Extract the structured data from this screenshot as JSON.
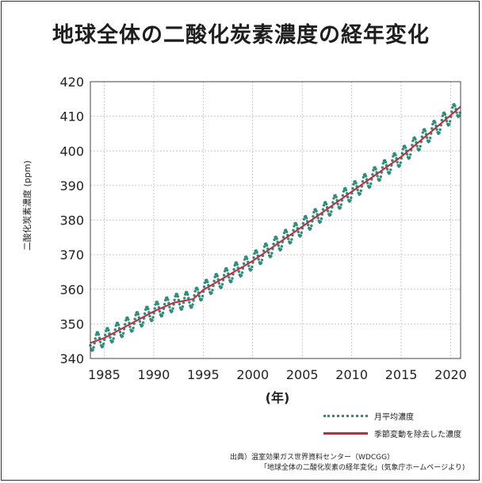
{
  "chart_data": {
    "type": "line",
    "title": "地球全体の二酸化炭素濃度の経年変化",
    "xlabel": "(年)",
    "ylabel": "二酸化炭素濃度 (ppm)",
    "xlim": [
      1983.6,
      2021.0
    ],
    "ylim": [
      340,
      420
    ],
    "x_ticks": [
      1985,
      1990,
      1995,
      2000,
      2005,
      2010,
      2015,
      2020
    ],
    "x_tick_labels": [
      "1985",
      "1990",
      "1995",
      "2000",
      "2005",
      "2010",
      "2015",
      "2020"
    ],
    "y_ticks": [
      340,
      350,
      360,
      370,
      380,
      390,
      400,
      410,
      420
    ],
    "y_tick_labels": [
      "340",
      "350",
      "360",
      "370",
      "380",
      "390",
      "400",
      "410",
      "420"
    ],
    "grid": true,
    "legend_position": "bottom-right",
    "series": [
      {
        "name": "月平均濃度",
        "color": "#2f8c7a",
        "style": "dotted",
        "seasonal_amplitude_ppm": 2.4,
        "x": [
          1983.6,
          1985,
          1990,
          1992,
          1994,
          1995,
          2000,
          2005,
          2010,
          2015,
          2020,
          2021.0
        ],
        "y": [
          344.5,
          345.9,
          353.6,
          356.1,
          357.2,
          359.8,
          368.2,
          378.1,
          388.2,
          398.3,
          410.3,
          412.8
        ]
      },
      {
        "name": "季節変動を除去した濃度",
        "color": "#c8263a",
        "style": "solid",
        "x": [
          1983.6,
          1985,
          1990,
          1992,
          1994,
          1995,
          2000,
          2005,
          2010,
          2015,
          2020,
          2021.0
        ],
        "y": [
          344.5,
          345.9,
          353.6,
          356.1,
          357.2,
          359.8,
          368.2,
          378.1,
          388.2,
          398.3,
          410.3,
          412.8
        ]
      }
    ]
  },
  "source": {
    "line1": "出典）温室効果ガス世界資料センター（WDCGG）",
    "line2": "「地球全体の二酸化炭素の経年変化」(気象庁ホームページより)"
  }
}
